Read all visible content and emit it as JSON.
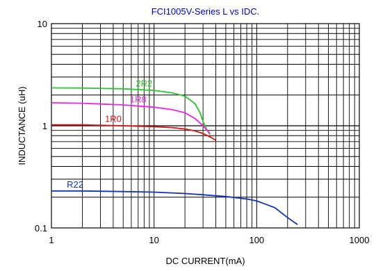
{
  "chart_data": {
    "type": "line",
    "title": "FCI1005V-Series L vs IDC.",
    "xlabel": "DC CURRENT(mA)",
    "ylabel": "INDUCTANCE (uH)",
    "xscale": "log",
    "yscale": "log",
    "xlim": [
      1,
      1000
    ],
    "ylim": [
      0.1,
      10
    ],
    "x_ticks": [
      "1",
      "10",
      "100",
      "1000"
    ],
    "y_ticks": [
      "0.1",
      "1",
      "10"
    ],
    "grid": true,
    "legend": "inline labels",
    "title_color": "#0000cc",
    "series": [
      {
        "name": "2R2",
        "color": "#22cc22",
        "label_x": 8,
        "x": [
          1,
          2,
          5,
          10,
          15,
          20,
          25,
          28,
          30,
          32,
          35
        ],
        "y": [
          2.35,
          2.34,
          2.3,
          2.22,
          2.1,
          1.95,
          1.65,
          1.35,
          1.1,
          0.95,
          0.82
        ]
      },
      {
        "name": "1R8",
        "color": "#ee22ee",
        "label_x": 7,
        "x": [
          1,
          2,
          5,
          10,
          15,
          20,
          25,
          30,
          33,
          35
        ],
        "y": [
          1.68,
          1.66,
          1.6,
          1.52,
          1.44,
          1.34,
          1.18,
          1.0,
          0.9,
          0.84
        ]
      },
      {
        "name": "1R0",
        "color": "#dd1111",
        "label_x": 4,
        "x": [
          1,
          2,
          5,
          10,
          15,
          20,
          25,
          30,
          35,
          40
        ],
        "y": [
          1.02,
          1.02,
          1.0,
          0.98,
          0.96,
          0.93,
          0.89,
          0.84,
          0.78,
          0.72
        ]
      },
      {
        "name": "R22",
        "color": "#1133bb",
        "label_x": 1.7,
        "x": [
          1,
          2,
          5,
          10,
          20,
          30,
          50,
          80,
          100,
          150,
          200,
          250
        ],
        "y": [
          0.23,
          0.23,
          0.227,
          0.224,
          0.217,
          0.211,
          0.203,
          0.192,
          0.184,
          0.158,
          0.126,
          0.108
        ]
      }
    ]
  }
}
